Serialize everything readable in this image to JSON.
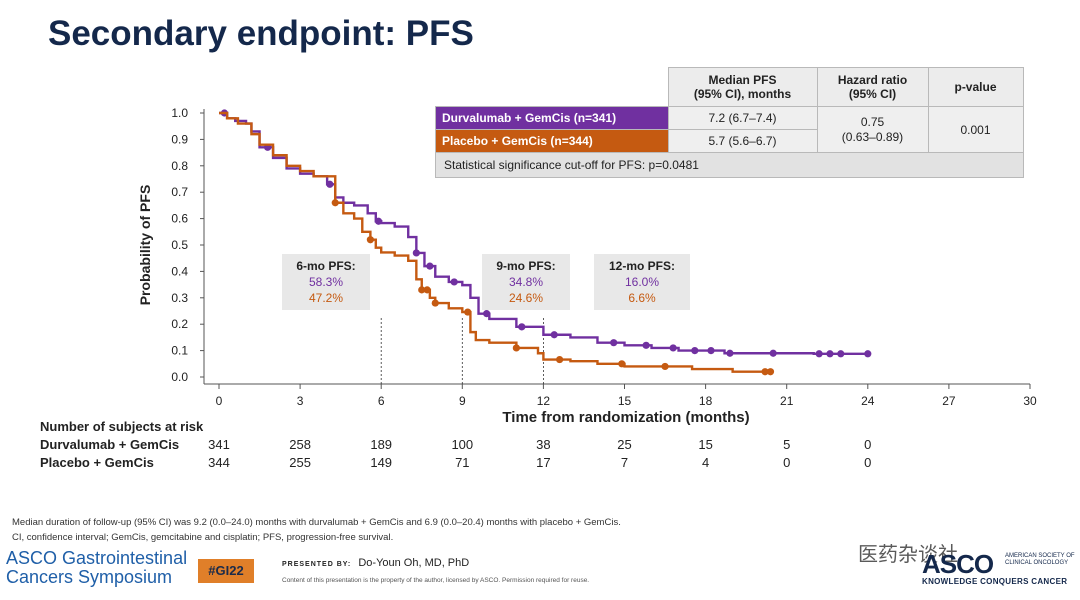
{
  "title": "Secondary endpoint: PFS",
  "table": {
    "col_median": "Median PFS\n(95% CI), months",
    "col_hr": "Hazard ratio\n(95% CI)",
    "col_p": "p-value",
    "rows": [
      {
        "arm": "Durvalumab + GemCis (n=341)",
        "median": "7.2 (6.7–7.4)",
        "color": "#7030a0"
      },
      {
        "arm": "Placebo + GemCis (n=344)",
        "median": "5.7 (5.6–6.7)",
        "color": "#c55a11"
      }
    ],
    "hr": "0.75\n(0.63–0.89)",
    "p": "0.001",
    "footer": "Statistical significance cut-off for PFS: p=0.0481"
  },
  "pfs_boxes": [
    {
      "label": "6-mo PFS:",
      "durva": "58.3%",
      "placebo": "47.2%"
    },
    {
      "label": "9-mo PFS:",
      "durva": "34.8%",
      "placebo": "24.6%"
    },
    {
      "label": "12-mo PFS:",
      "durva": "16.0%",
      "placebo": "6.6%"
    }
  ],
  "chart_data": {
    "type": "line",
    "title": "",
    "xlabel": "Time from randomization (months)",
    "ylabel": "Probability of PFS",
    "xlim": [
      0,
      30
    ],
    "ylim": [
      0,
      1.0
    ],
    "xticks": [
      0,
      3,
      6,
      9,
      12,
      15,
      18,
      21,
      24,
      27,
      30
    ],
    "yticks": [
      "0.0",
      "0.1",
      "0.2",
      "0.3",
      "0.4",
      "0.5",
      "0.6",
      "0.7",
      "0.8",
      "0.9",
      "1.0"
    ],
    "colors": {
      "durva": "#7030a0",
      "placebo": "#c55a11"
    },
    "reference_lines_x": [
      6,
      9,
      12
    ],
    "series": [
      {
        "name": "Durvalumab + GemCis",
        "step": true,
        "x": [
          0,
          0.3,
          0.6,
          1.0,
          1.2,
          1.5,
          2.0,
          2.5,
          3.0,
          3.5,
          4.0,
          4.3,
          4.6,
          5.0,
          5.5,
          5.8,
          6.0,
          6.5,
          7.0,
          7.3,
          7.6,
          8.0,
          8.5,
          9.0,
          9.3,
          9.6,
          10.0,
          11.0,
          12.0,
          13.0,
          14.0,
          15.0,
          16.0,
          17.0,
          18.0,
          18.7,
          20.0,
          22.0,
          24.0
        ],
        "y": [
          1.0,
          0.98,
          0.97,
          0.96,
          0.93,
          0.87,
          0.83,
          0.79,
          0.77,
          0.76,
          0.73,
          0.68,
          0.66,
          0.65,
          0.62,
          0.59,
          0.583,
          0.57,
          0.53,
          0.47,
          0.42,
          0.38,
          0.36,
          0.348,
          0.3,
          0.24,
          0.22,
          0.19,
          0.16,
          0.15,
          0.13,
          0.12,
          0.11,
          0.1,
          0.1,
          0.09,
          0.09,
          0.088,
          0.088
        ],
        "censored_x": [
          0.2,
          1.8,
          4.1,
          5.9,
          7.3,
          7.8,
          8.7,
          9.9,
          11.2,
          12.4,
          14.6,
          15.8,
          16.8,
          17.6,
          18.2,
          18.9,
          20.5,
          22.2,
          22.6,
          23.0,
          24.0
        ]
      },
      {
        "name": "Placebo + GemCis",
        "step": true,
        "x": [
          0,
          0.3,
          0.7,
          1.2,
          1.5,
          2.0,
          2.5,
          3.0,
          3.5,
          4.3,
          4.6,
          5.0,
          5.3,
          5.6,
          5.8,
          6.0,
          6.5,
          7.0,
          7.3,
          7.5,
          7.8,
          8.0,
          8.5,
          9.0,
          9.3,
          9.5,
          10.0,
          11.0,
          11.8,
          12.0,
          13.0,
          14.0,
          15.0,
          16.5,
          17.5,
          19.0,
          20.0,
          20.4
        ],
        "y": [
          1.0,
          0.98,
          0.96,
          0.92,
          0.88,
          0.84,
          0.8,
          0.78,
          0.76,
          0.66,
          0.62,
          0.6,
          0.55,
          0.52,
          0.49,
          0.472,
          0.46,
          0.44,
          0.37,
          0.33,
          0.3,
          0.28,
          0.26,
          0.246,
          0.17,
          0.14,
          0.13,
          0.11,
          0.09,
          0.066,
          0.06,
          0.05,
          0.04,
          0.04,
          0.03,
          0.02,
          0.02,
          0.02
        ],
        "censored_x": [
          4.3,
          5.6,
          7.5,
          7.7,
          8.0,
          9.2,
          11.0,
          12.6,
          14.9,
          16.5,
          20.2,
          20.4
        ]
      }
    ]
  },
  "risk": {
    "title": "Number of subjects at risk",
    "rows": [
      {
        "label": "Durvalumab + GemCis",
        "values": [
          "341",
          "258",
          "189",
          "100",
          "38",
          "25",
          "15",
          "5",
          "0"
        ]
      },
      {
        "label": "Placebo + GemCis",
        "values": [
          "344",
          "255",
          "149",
          "71",
          "17",
          "7",
          "4",
          "0",
          "0"
        ]
      }
    ]
  },
  "footnotes": [
    "Median duration of follow-up (95% CI) was 9.2 (0.0–24.0) months with durvalumab + GemCis and 6.9 (0.0–20.4) months with placebo + GemCis.",
    "CI, confidence interval; GemCis, gemcitabine and cisplatin; PFS, progression-free survival."
  ],
  "branding": {
    "symposium_line1": "ASCO Gastrointestinal",
    "symposium_line2": "Cancers Symposium",
    "tag": "#GI22",
    "presented_by": "PRESENTED BY:",
    "presenter": "Do-Youn Oh, MD, PhD",
    "content_note": "Content of this presentation is the property of the author, licensed by ASCO. Permission required for reuse.",
    "asco": "ASCO",
    "asco_sub": "AMERICAN SOCIETY OF\nCLINICAL ONCOLOGY",
    "asco_tagline": "KNOWLEDGE CONQUERS CANCER",
    "watermark": "医药杂谈社"
  }
}
